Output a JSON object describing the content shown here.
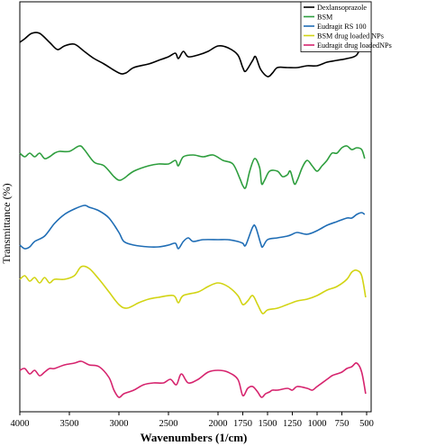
{
  "chart_data": {
    "type": "line",
    "title": "",
    "xlabel": "Wavenumbers (1/cm)",
    "ylabel": "Transmittance (%)",
    "xlim": [
      4000,
      500
    ],
    "x_reversed": true,
    "x_ticks": [
      4000,
      3500,
      3000,
      2500,
      2000,
      1750,
      1500,
      1250,
      1000,
      750,
      500
    ],
    "x_tick_labels": [
      "4000",
      "3500",
      "3000",
      "2500",
      "2000",
      "1750",
      "1500",
      "1250",
      "1000",
      "750",
      "500"
    ],
    "y_ticks_shown": false,
    "grid": false,
    "legend_position": "top-right",
    "series": [
      {
        "name": "Dexlansoprazole",
        "color": "#000000",
        "points": [
          [
            4000,
            44
          ],
          [
            3950,
            46
          ],
          [
            3880,
            49
          ],
          [
            3800,
            49
          ],
          [
            3700,
            44
          ],
          [
            3620,
            40
          ],
          [
            3550,
            42
          ],
          [
            3450,
            43
          ],
          [
            3350,
            39
          ],
          [
            3250,
            35
          ],
          [
            3150,
            32
          ],
          [
            3000,
            27
          ],
          [
            2930,
            27
          ],
          [
            2850,
            30
          ],
          [
            2700,
            32
          ],
          [
            2600,
            34
          ],
          [
            2500,
            36
          ],
          [
            2430,
            38
          ],
          [
            2400,
            35
          ],
          [
            2350,
            39
          ],
          [
            2300,
            36
          ],
          [
            2200,
            37
          ],
          [
            2100,
            39
          ],
          [
            2000,
            42
          ],
          [
            1900,
            41
          ],
          [
            1800,
            37
          ],
          [
            1750,
            30
          ],
          [
            1720,
            28
          ],
          [
            1650,
            34
          ],
          [
            1620,
            36
          ],
          [
            1570,
            29
          ],
          [
            1500,
            25
          ],
          [
            1450,
            27
          ],
          [
            1400,
            30
          ],
          [
            1300,
            30
          ],
          [
            1200,
            30
          ],
          [
            1100,
            31
          ],
          [
            1000,
            31
          ],
          [
            900,
            33
          ],
          [
            800,
            34
          ],
          [
            700,
            35
          ],
          [
            600,
            37
          ],
          [
            550,
            44
          ],
          [
            510,
            50
          ]
        ]
      },
      {
        "name": "BSM",
        "color": "#2e9e3e",
        "points": [
          [
            4000,
            24
          ],
          [
            3950,
            22
          ],
          [
            3900,
            24
          ],
          [
            3850,
            22
          ],
          [
            3800,
            24
          ],
          [
            3750,
            21
          ],
          [
            3700,
            22
          ],
          [
            3650,
            24
          ],
          [
            3600,
            25
          ],
          [
            3500,
            25
          ],
          [
            3400,
            28
          ],
          [
            3350,
            26
          ],
          [
            3250,
            19
          ],
          [
            3150,
            17
          ],
          [
            3050,
            11
          ],
          [
            3000,
            9
          ],
          [
            2950,
            10
          ],
          [
            2850,
            14
          ],
          [
            2700,
            17
          ],
          [
            2600,
            18
          ],
          [
            2500,
            18
          ],
          [
            2430,
            20
          ],
          [
            2400,
            17
          ],
          [
            2350,
            22
          ],
          [
            2250,
            23
          ],
          [
            2150,
            22
          ],
          [
            2050,
            23
          ],
          [
            1950,
            20
          ],
          [
            1850,
            18
          ],
          [
            1780,
            10
          ],
          [
            1750,
            6
          ],
          [
            1720,
            5
          ],
          [
            1680,
            14
          ],
          [
            1630,
            21
          ],
          [
            1580,
            16
          ],
          [
            1560,
            7
          ],
          [
            1530,
            9
          ],
          [
            1480,
            14
          ],
          [
            1400,
            14
          ],
          [
            1350,
            11
          ],
          [
            1300,
            12
          ],
          [
            1270,
            14
          ],
          [
            1230,
            7
          ],
          [
            1200,
            9
          ],
          [
            1150,
            16
          ],
          [
            1100,
            20
          ],
          [
            1050,
            17
          ],
          [
            1000,
            14
          ],
          [
            950,
            17
          ],
          [
            900,
            20
          ],
          [
            850,
            24
          ],
          [
            800,
            24
          ],
          [
            750,
            27
          ],
          [
            700,
            28
          ],
          [
            650,
            26
          ],
          [
            600,
            27
          ],
          [
            550,
            26
          ],
          [
            520,
            21
          ]
        ]
      },
      {
        "name": "Eudragit RS 100",
        "color": "#1f6db5",
        "points": [
          [
            4000,
            7
          ],
          [
            3950,
            5
          ],
          [
            3900,
            6
          ],
          [
            3850,
            9
          ],
          [
            3750,
            12
          ],
          [
            3650,
            19
          ],
          [
            3550,
            24
          ],
          [
            3450,
            27
          ],
          [
            3350,
            29
          ],
          [
            3300,
            28
          ],
          [
            3200,
            26
          ],
          [
            3100,
            22
          ],
          [
            3000,
            14
          ],
          [
            2950,
            9
          ],
          [
            2850,
            7
          ],
          [
            2700,
            6
          ],
          [
            2600,
            6
          ],
          [
            2500,
            7
          ],
          [
            2430,
            8
          ],
          [
            2400,
            5
          ],
          [
            2350,
            9
          ],
          [
            2300,
            11
          ],
          [
            2250,
            9
          ],
          [
            2150,
            10
          ],
          [
            2000,
            10
          ],
          [
            1900,
            10
          ],
          [
            1800,
            9
          ],
          [
            1750,
            8
          ],
          [
            1720,
            7
          ],
          [
            1650,
            17
          ],
          [
            1620,
            17
          ],
          [
            1570,
            8
          ],
          [
            1550,
            6
          ],
          [
            1500,
            10
          ],
          [
            1400,
            11
          ],
          [
            1300,
            12
          ],
          [
            1250,
            13
          ],
          [
            1200,
            14
          ],
          [
            1100,
            13
          ],
          [
            1000,
            15
          ],
          [
            900,
            18
          ],
          [
            800,
            20
          ],
          [
            700,
            22
          ],
          [
            650,
            22
          ],
          [
            600,
            24
          ],
          [
            550,
            25
          ],
          [
            520,
            24
          ]
        ]
      },
      {
        "name": "BSM drug loaded NPs",
        "color": "#d2d414",
        "points": [
          [
            4000,
            26
          ],
          [
            3950,
            28
          ],
          [
            3900,
            25
          ],
          [
            3850,
            27
          ],
          [
            3800,
            24
          ],
          [
            3750,
            27
          ],
          [
            3700,
            24
          ],
          [
            3650,
            26
          ],
          [
            3550,
            26
          ],
          [
            3450,
            28
          ],
          [
            3380,
            33
          ],
          [
            3300,
            32
          ],
          [
            3200,
            26
          ],
          [
            3100,
            19
          ],
          [
            3000,
            12
          ],
          [
            2920,
            10
          ],
          [
            2800,
            13
          ],
          [
            2700,
            15
          ],
          [
            2600,
            16
          ],
          [
            2450,
            17
          ],
          [
            2400,
            13
          ],
          [
            2350,
            17
          ],
          [
            2200,
            19
          ],
          [
            2100,
            22
          ],
          [
            2000,
            24
          ],
          [
            1900,
            22
          ],
          [
            1800,
            17
          ],
          [
            1750,
            12
          ],
          [
            1700,
            14
          ],
          [
            1650,
            17
          ],
          [
            1600,
            12
          ],
          [
            1550,
            7
          ],
          [
            1500,
            9
          ],
          [
            1400,
            10
          ],
          [
            1300,
            12
          ],
          [
            1200,
            14
          ],
          [
            1100,
            15
          ],
          [
            1000,
            17
          ],
          [
            900,
            20
          ],
          [
            800,
            22
          ],
          [
            700,
            26
          ],
          [
            650,
            30
          ],
          [
            600,
            31
          ],
          [
            550,
            28
          ],
          [
            510,
            16
          ]
        ]
      },
      {
        "name": "Eudragit drug loadedNPs",
        "color": "#d6246e",
        "points": [
          [
            4000,
            17
          ],
          [
            3950,
            18
          ],
          [
            3900,
            15
          ],
          [
            3850,
            17
          ],
          [
            3800,
            14
          ],
          [
            3750,
            16
          ],
          [
            3700,
            18
          ],
          [
            3650,
            18
          ],
          [
            3550,
            20
          ],
          [
            3450,
            21
          ],
          [
            3380,
            22
          ],
          [
            3300,
            20
          ],
          [
            3200,
            19
          ],
          [
            3100,
            13
          ],
          [
            3050,
            6
          ],
          [
            3000,
            2
          ],
          [
            2950,
            4
          ],
          [
            2850,
            6
          ],
          [
            2750,
            9
          ],
          [
            2650,
            10
          ],
          [
            2550,
            10
          ],
          [
            2480,
            12
          ],
          [
            2420,
            9
          ],
          [
            2370,
            15
          ],
          [
            2300,
            10
          ],
          [
            2200,
            12
          ],
          [
            2100,
            16
          ],
          [
            2000,
            17
          ],
          [
            1900,
            16
          ],
          [
            1800,
            12
          ],
          [
            1750,
            3
          ],
          [
            1700,
            7
          ],
          [
            1650,
            8
          ],
          [
            1600,
            5
          ],
          [
            1560,
            2
          ],
          [
            1520,
            4
          ],
          [
            1480,
            5
          ],
          [
            1450,
            6
          ],
          [
            1400,
            6
          ],
          [
            1300,
            7
          ],
          [
            1250,
            6
          ],
          [
            1200,
            8
          ],
          [
            1100,
            7
          ],
          [
            1050,
            6
          ],
          [
            1000,
            8
          ],
          [
            900,
            12
          ],
          [
            850,
            14
          ],
          [
            800,
            15
          ],
          [
            750,
            16
          ],
          [
            700,
            18
          ],
          [
            650,
            19
          ],
          [
            600,
            21
          ],
          [
            550,
            16
          ],
          [
            510,
            4
          ]
        ]
      }
    ]
  }
}
